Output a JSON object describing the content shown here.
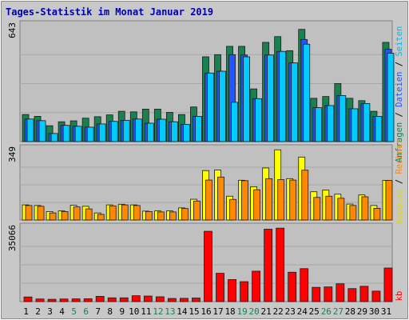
{
  "chart_data": {
    "type": "bar",
    "title": "Tages-Statistik im Monat Januar 2019",
    "categories": [
      "1",
      "2",
      "3",
      "4",
      "5",
      "6",
      "7",
      "8",
      "9",
      "10",
      "11",
      "12",
      "13",
      "14",
      "15",
      "16",
      "17",
      "18",
      "19",
      "20",
      "21",
      "22",
      "23",
      "24",
      "25",
      "26",
      "27",
      "28",
      "29",
      "30",
      "31"
    ],
    "weekend_days": [
      "5",
      "6",
      "12",
      "13",
      "19",
      "20",
      "26",
      "27"
    ],
    "right_label": {
      "anfragen": "Anfragen",
      "dateien": "Dateien",
      "seiten": "Seiten",
      "besuche": "Besuche",
      "rechner": "Rechner",
      "kb": "kb",
      "sep": " / "
    },
    "panels": [
      {
        "name": "hits-files",
        "ymax_label": "643",
        "ymax": 643,
        "series": [
          {
            "name": "Anfragen",
            "color": "#1a8050",
            "values": [
              150,
              140,
              88,
              110,
              115,
              130,
              138,
              148,
              168,
              165,
              180,
              180,
              162,
              150,
              192,
              470,
              482,
              528,
              528,
              292,
              550,
              582,
              504,
              622,
              240,
              250,
              322,
              240,
              227,
              168,
              550
            ]
          },
          {
            "name": "Dateien",
            "color": "#2255ff",
            "values": [
              125,
              116,
              45,
              90,
              85,
              80,
              98,
              112,
              118,
              125,
              102,
              124,
              110,
              95,
              140,
              380,
              390,
              482,
              480,
              238,
              480,
              500,
              436,
              566,
              188,
              200,
              255,
              182,
              211,
              140,
              512
            ]
          },
          {
            "name": "Seiten",
            "color": "#00ccff",
            "values": [
              125,
              116,
              45,
              90,
              85,
              80,
              98,
              112,
              118,
              125,
              102,
              124,
              110,
              95,
              140,
              380,
              390,
              218,
              470,
              238,
              480,
              500,
              436,
              540,
              188,
              200,
              255,
              182,
              211,
              140,
              490
            ]
          }
        ]
      },
      {
        "name": "visits-hosts",
        "ymax_label": "349",
        "ymax": 349,
        "series": [
          {
            "name": "Besuche",
            "color": "#ffff00",
            "values": [
              75,
              72,
              42,
              45,
              73,
              68,
              35,
              75,
              78,
              75,
              44,
              45,
              45,
              60,
              103,
              245,
              248,
              118,
              197,
              165,
              258,
              348,
              205,
              312,
              140,
              148,
              128,
              79,
              124,
              72,
              196
            ]
          },
          {
            "name": "Rechner",
            "color": "#ff8800",
            "values": [
              72,
              68,
              35,
              42,
              65,
              55,
              28,
              70,
              75,
              72,
              42,
              40,
              40,
              57,
              94,
              198,
              213,
              102,
              195,
              150,
              205,
              200,
              198,
              247,
              112,
              118,
              108,
              72,
              115,
              58,
              196
            ]
          }
        ]
      },
      {
        "name": "kb",
        "ymax_label": "35066",
        "ymax": 35066,
        "series": [
          {
            "name": "kb",
            "color": "#ff0000",
            "values": [
              2200,
              1250,
              1100,
              1250,
              1300,
              1350,
              2500,
              1800,
              1800,
              2800,
              2650,
              2300,
              1500,
              1550,
              1700,
              33500,
              13500,
              10500,
              9500,
              14500,
              34500,
              35000,
              14000,
              15700,
              6800,
              7000,
              8500,
              6200,
              7300,
              5000,
              16000
            ]
          }
        ]
      }
    ]
  }
}
